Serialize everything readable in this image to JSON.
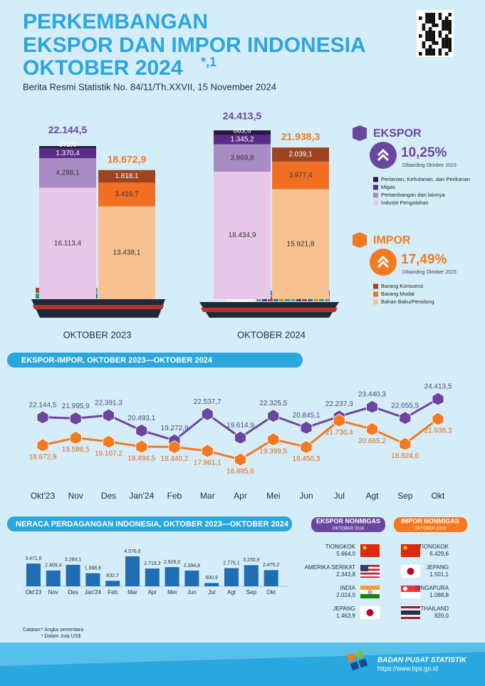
{
  "header": {
    "title": [
      "PERKEMBANGAN",
      "EKSPOR DAN IMPOR INDONESIA",
      "OKTOBER 2024"
    ],
    "title_mark": "*,1",
    "subtitle": "Berita Resmi Statistik No. 84/11/Th.XXVII, 15 November 2024"
  },
  "chart_data": [
    {
      "type": "stacked-bar",
      "categories": [
        "OKTOBER 2023",
        "OKTOBER 2024"
      ],
      "groups": [
        {
          "name": "EKSPOR",
          "color": "#6b46a0",
          "change": "10,25%",
          "note": "Dibanding Oktober 2023",
          "totals": [
            22144.5,
            24413.5
          ],
          "total_labels": [
            "22.144,5",
            "24.413,5"
          ],
          "series": [
            {
              "name": "Industri Pengolahan",
              "color": "#e7c8e8",
              "values": [
                16113.4,
                18434.9
              ],
              "value_labels": [
                "16.113,4",
                "18.434,9"
              ]
            },
            {
              "name": "Pertambangan dan lainnya",
              "color": "#a98cc4",
              "values": [
                4288.1,
                3969.8
              ],
              "value_labels": [
                "4.288,1",
                "3.969,8"
              ]
            },
            {
              "name": "Migas",
              "color": "#5a2d88",
              "values": [
                1370.4,
                1345.2
              ],
              "value_labels": [
                "1.370,4",
                "1.345,2"
              ]
            },
            {
              "name": "Pertanian, Kehutanan, dan Perikanan",
              "color": "#2b1840",
              "values": [
                372.6,
                663.6
              ],
              "value_labels": [
                "372,6",
                "663,6"
              ]
            }
          ]
        },
        {
          "name": "IMPOR",
          "color": "#f47920",
          "change": "17,49%",
          "note": "Dibanding Oktober 2023",
          "totals": [
            18672.9,
            21938.3
          ],
          "total_labels": [
            "18.672,9",
            "21.938,3"
          ],
          "series": [
            {
              "name": "Bahan Baku/Penolong",
              "color": "#f7c28f",
              "values": [
                13438.1,
                15921.8
              ],
              "value_labels": [
                "13.438,1",
                "15.921,8"
              ]
            },
            {
              "name": "Barang Modal",
              "color": "#f26f22",
              "values": [
                3416.7,
                3977.4
              ],
              "value_labels": [
                "3.416,7",
                "3.977,4"
              ]
            },
            {
              "name": "Barang Konsumsi",
              "color": "#9e4420",
              "values": [
                1818.1,
                2039.1
              ],
              "value_labels": [
                "1.818,1",
                "2.039,1"
              ]
            }
          ]
        }
      ]
    },
    {
      "type": "line",
      "title": "EKSPOR-IMPOR, OKTOBER 2023—OKTOBER 2024",
      "categories": [
        "Okt'23",
        "Nov",
        "Des",
        "Jan'24",
        "Feb",
        "Mar",
        "Apr",
        "Mei",
        "Jun",
        "Jul",
        "Agt",
        "Sep",
        "Okt"
      ],
      "series": [
        {
          "color": "#6b46a0",
          "values": [
            22144.5,
            21995.9,
            22391.3,
            20493.1,
            19272.9,
            22537.7,
            19614.9,
            22325.5,
            20845.1,
            22237.3,
            23440.3,
            22055.5,
            24413.5
          ],
          "value_labels": [
            "22.144,5",
            "21.995,9",
            "22.391,3",
            "20.493,1",
            "19.272,9",
            "22.537,7",
            "19.614,9",
            "22.325,5",
            "20.845,1",
            "22.237,3",
            "23.440,3",
            "22.055,5",
            "24.413,5"
          ]
        },
        {
          "color": "#f47920",
          "values": [
            18672.9,
            19586.5,
            19107.2,
            18494.5,
            18440.2,
            17961.1,
            16895.6,
            19399.5,
            18450.3,
            21736.4,
            20665.2,
            18824.6,
            21938.3
          ],
          "value_labels": [
            "18.672,9",
            "19.586,5",
            "19.107,2",
            "18.494,5",
            "18.440,2",
            "17.961,1",
            "16.895,6",
            "19.399,5",
            "18.450,3",
            "21.736,4",
            "20.665,2",
            "18.824,6",
            "21.938,3"
          ]
        }
      ]
    },
    {
      "type": "bar",
      "title": "NERACA PERDAGANGAN INDONESIA, OKTOBER 2023—OKTOBER 2024",
      "categories": [
        "Okt'23",
        "Nov",
        "Des",
        "Jan'24",
        "Feb",
        "Mar",
        "Apr",
        "Mei",
        "Jun",
        "Jul",
        "Agt",
        "Sep",
        "Okt"
      ],
      "values": [
        3471.6,
        2409.4,
        3284.1,
        1998.6,
        832.7,
        4576.6,
        2719.3,
        2926.0,
        2394.8,
        500.9,
        2775.1,
        3230.9,
        2475.2
      ],
      "value_labels": [
        "3.471,6",
        "2.409,4",
        "3.284,1",
        "1.998,6",
        "832,7",
        "4.576,6",
        "2.719,3",
        "2.926,0",
        "2.394,8",
        "500,9",
        "2.775,1",
        "3.230,9",
        "2.475,2"
      ],
      "color": "#1f6db3"
    }
  ],
  "partners": [
    {
      "title": "EKSPOR NONMIGAS",
      "subtitle": "OKTOBER 2024",
      "rows": [
        {
          "country": "TIONGKOK",
          "value": "5.664,0"
        },
        {
          "country": "AMERIKA SERIKAT",
          "value": "2.343,8"
        },
        {
          "country": "INDIA",
          "value": "2.024,0"
        },
        {
          "country": "JEPANG",
          "value": "1.463,9"
        }
      ]
    },
    {
      "title": "IMPOR NONMIGAS",
      "subtitle": "OKTOBER 2024",
      "rows": [
        {
          "country": "TIONGKOK",
          "value": "6.429,6"
        },
        {
          "country": "JEPANG",
          "value": "1.501,1"
        },
        {
          "country": "SINGAPURA",
          "value": "1.088,8"
        },
        {
          "country": "THAILAND",
          "value": "820,0"
        }
      ]
    }
  ],
  "notes": {
    "title": "Catatan:",
    "items": [
      "* Angka sementara",
      "¹ Dalam Juta US$"
    ]
  },
  "footer": {
    "org": "BADAN PUSAT STATISTIK",
    "url": "https://www.bps.go.id"
  }
}
